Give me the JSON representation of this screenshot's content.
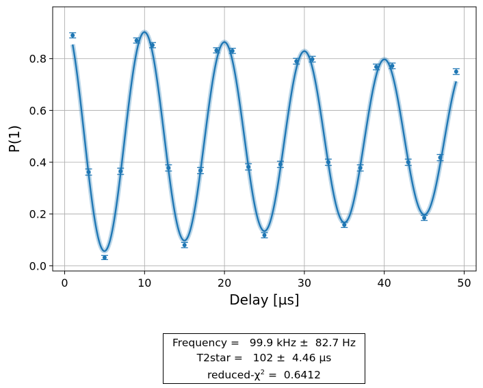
{
  "chart_data": {
    "type": "scatter",
    "xlabel": "Delay [µs]",
    "ylabel": "P(1)",
    "xlim": [
      -1.5,
      51.5
    ],
    "ylim": [
      -0.02,
      1.0
    ],
    "xticks": [
      0,
      10,
      20,
      30,
      40,
      50
    ],
    "yticks": [
      0.0,
      0.2,
      0.4,
      0.6,
      0.8
    ],
    "xtick_labels": [
      "0",
      "10",
      "20",
      "30",
      "40",
      "50"
    ],
    "ytick_labels": [
      "0.0",
      "0.2",
      "0.4",
      "0.6",
      "0.8"
    ],
    "grid": true,
    "color": "#1f77b4",
    "series": [
      {
        "kind": "data-points-with-error-bars",
        "x": [
          1,
          3,
          5,
          7,
          9,
          11,
          13,
          15,
          17,
          19,
          21,
          23,
          25,
          27,
          29,
          31,
          33,
          35,
          37,
          39,
          41,
          43,
          45,
          47,
          49
        ],
        "y": [
          0.89,
          0.362,
          0.032,
          0.365,
          0.87,
          0.852,
          0.378,
          0.08,
          0.368,
          0.832,
          0.83,
          0.382,
          0.118,
          0.392,
          0.79,
          0.798,
          0.4,
          0.158,
          0.378,
          0.768,
          0.772,
          0.4,
          0.185,
          0.418,
          0.75
        ],
        "yerr": [
          0.01,
          0.012,
          0.008,
          0.012,
          0.01,
          0.01,
          0.012,
          0.01,
          0.012,
          0.01,
          0.01,
          0.012,
          0.01,
          0.012,
          0.011,
          0.011,
          0.012,
          0.01,
          0.012,
          0.011,
          0.011,
          0.012,
          0.01,
          0.012,
          0.011
        ]
      },
      {
        "kind": "fit-curve",
        "model": "0.5 - A*exp(-t/T2)*cos(2*pi*f*t)",
        "amplitude": 0.455,
        "offset": 0.49,
        "frequency_MHz": 0.0999,
        "t2_us": 102,
        "x_range": [
          1,
          49
        ]
      }
    ]
  },
  "fit_box": {
    "frequency_line": "Frequency =   99.9 kHz ±  82.7 Hz",
    "t2star_line": "T2star =   102 ±  4.46 µs",
    "chi_prefix": "reduced-χ",
    "chi_sup": "2",
    "chi_suffix": " =  0.6412"
  }
}
